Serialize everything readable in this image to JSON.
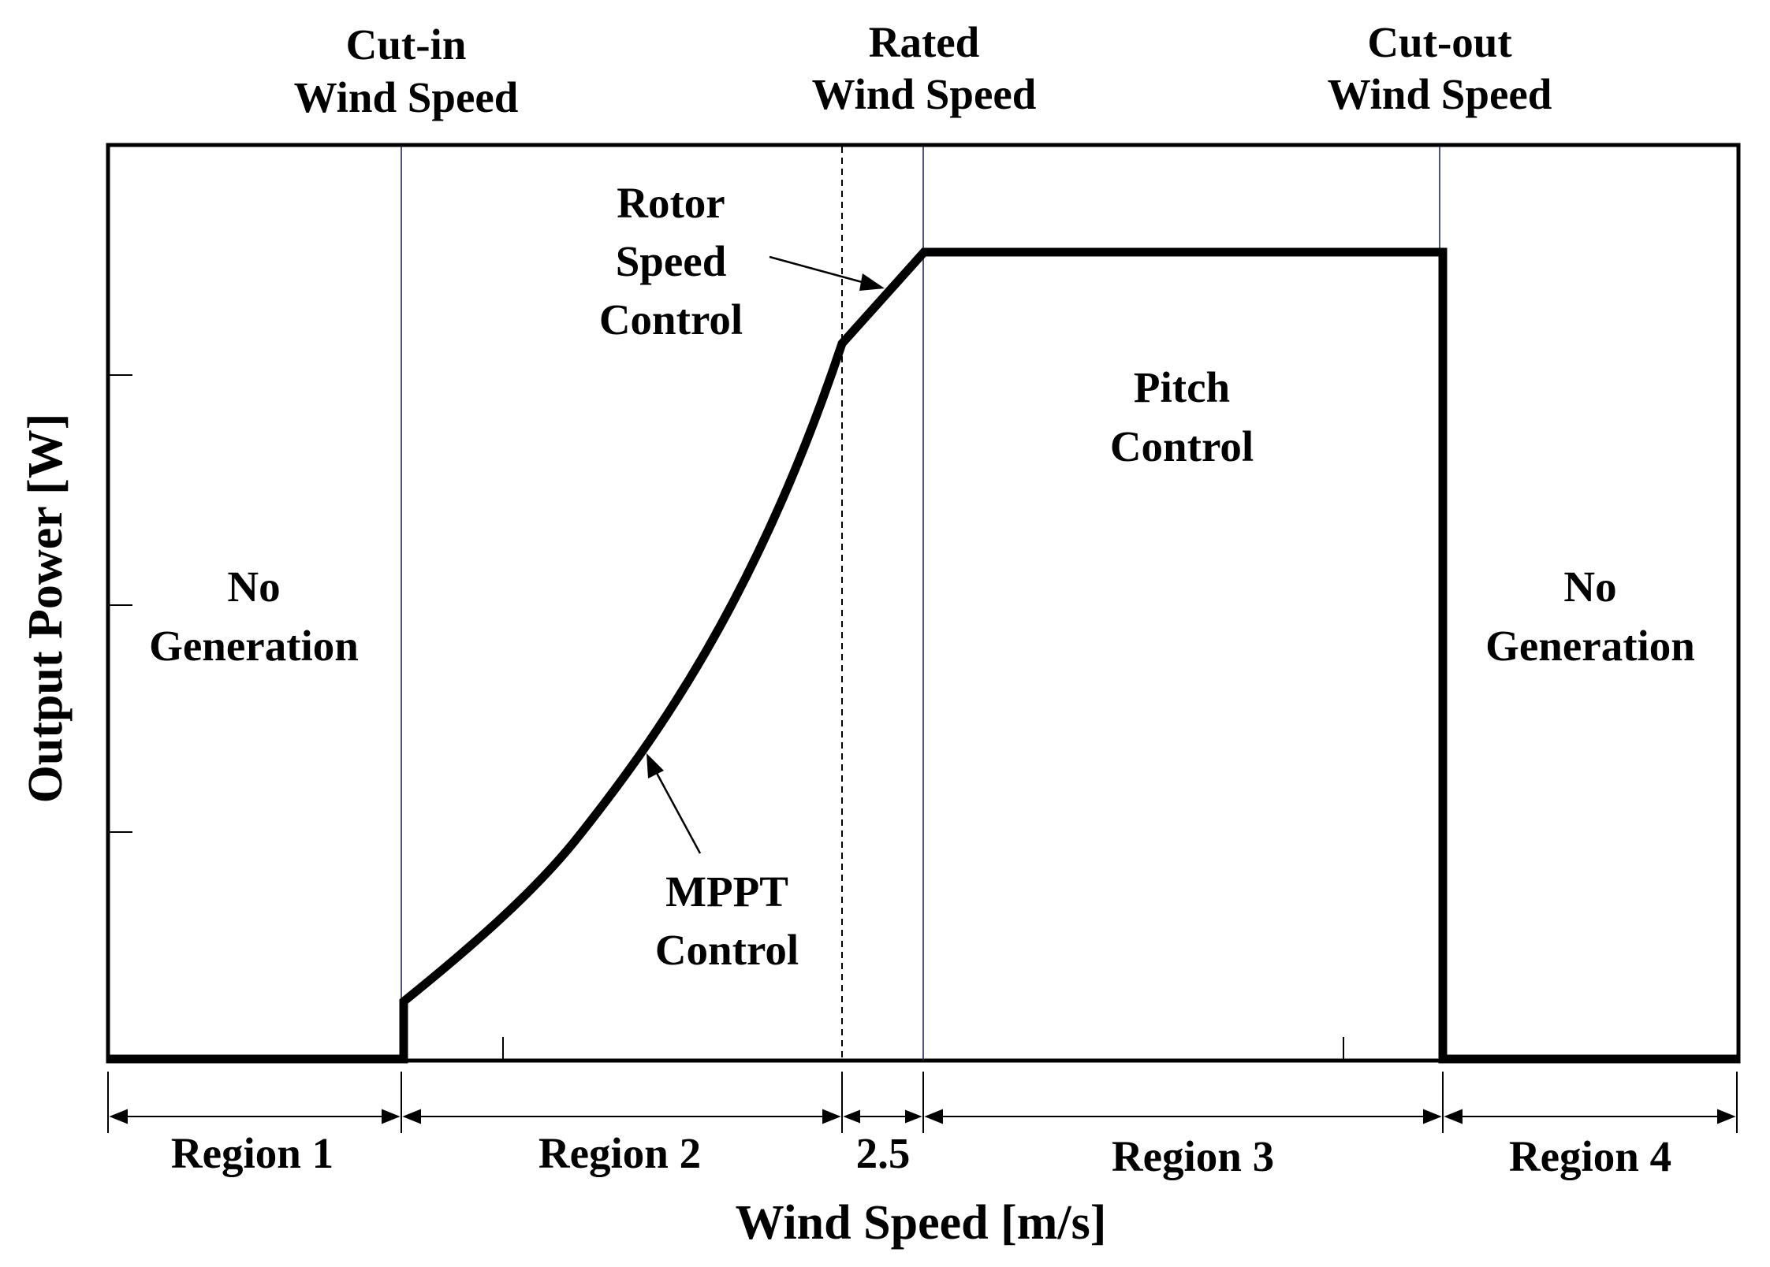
{
  "diagram": {
    "top_labels": {
      "cut_in": [
        "Cut-in",
        "Wind Speed"
      ],
      "rated": [
        "Rated",
        "Wind Speed"
      ],
      "cut_out": [
        "Cut-out",
        "Wind Speed"
      ]
    },
    "annotations": {
      "rotor_speed_control": [
        "Rotor",
        "Speed",
        "Control"
      ],
      "pitch_control": [
        "Pitch",
        "Control"
      ],
      "mppt_control": [
        "MPPT",
        "Control"
      ],
      "no_generation_left": [
        "No",
        "Generation"
      ],
      "no_generation_right": [
        "No",
        "Generation"
      ]
    },
    "regions": {
      "region1": "Region 1",
      "region2": "Region 2",
      "region2_5": "2.5",
      "region3": "Region 3",
      "region4": "Region 4"
    },
    "axes": {
      "xlabel": "Wind Speed [m/s]",
      "ylabel": "Output Power [W]"
    },
    "colors": {
      "curve": "#000000",
      "boundary_lines": "#1a2a5a"
    }
  }
}
